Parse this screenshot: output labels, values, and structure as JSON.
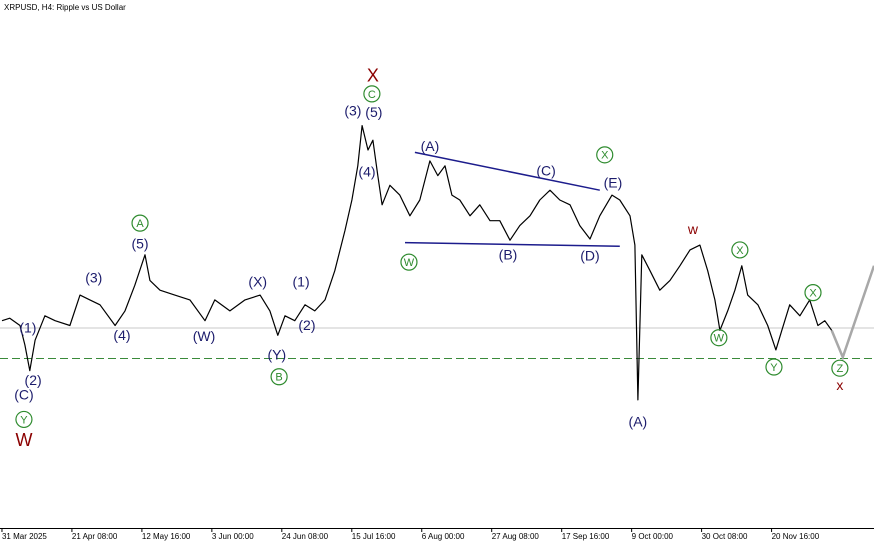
{
  "chart_data": {
    "type": "line",
    "title": "XRPUSD, H4:  Ripple vs US Dollar",
    "xlim": [
      -0.6,
      265.9
    ],
    "ylim": [
      0.26,
      4.73
    ],
    "xticks": [
      {
        "value": 0,
        "label": "31 Mar 2025"
      },
      {
        "value": 21.33,
        "label": "21 Apr 08:00"
      },
      {
        "value": 42.67,
        "label": "12 May 16:00"
      },
      {
        "value": 64,
        "label": "3 Jun 00:00"
      },
      {
        "value": 85.33,
        "label": "24 Jun 08:00"
      },
      {
        "value": 106.67,
        "label": "15 Jul 16:00"
      },
      {
        "value": 128,
        "label": "6 Aug 00:00"
      },
      {
        "value": 149.33,
        "label": "27 Aug 08:00"
      },
      {
        "value": 170.67,
        "label": "17 Sep 16:00"
      },
      {
        "value": 192,
        "label": "9 Oct 00:00"
      },
      {
        "value": 213.33,
        "label": "30 Oct 08:00"
      },
      {
        "value": 234.67,
        "label": "20 Nov 16:00"
      }
    ],
    "series": [
      {
        "color": "#000000",
        "x": [
          0.0,
          2.4,
          5.5,
          7.0,
          8.5,
          10.1,
          13.1,
          16.2,
          20.7,
          23.8,
          26.8,
          29.9,
          34.5,
          37.5,
          40.5,
          43.6,
          45.1,
          48.2,
          52.7,
          57.3,
          61.9,
          64.9,
          69.5,
          74.1,
          78.7,
          81.7,
          84.1,
          86.3,
          89.3,
          92.4,
          95.4,
          98.5,
          101.5,
          104.6,
          106.7,
          108.5,
          109.8,
          111.6,
          113.1,
          114.6,
          115.9,
          118.3,
          121.3,
          124.4,
          127.4,
          130.5,
          132.9,
          135.1,
          137.2,
          139.6,
          142.7,
          145.7,
          148.8,
          151.8,
          154.9,
          157.9,
          161.0,
          164.0,
          167.1,
          170.1,
          173.2,
          176.2,
          179.3,
          182.3,
          186.0,
          188.4,
          191.5,
          193.0,
          193.9,
          195.1,
          197.6,
          200.6,
          203.7,
          206.7,
          209.8,
          212.8,
          215.2,
          217.4,
          218.9,
          221.3,
          223.5,
          225.6,
          227.4,
          230.5,
          233.5,
          236.0,
          237.8,
          240.2,
          243.3,
          246.3,
          248.8,
          250.9,
          253.0
        ],
        "values": [
          2.1,
          2.12,
          2.06,
          1.9,
          1.69,
          1.94,
          2.14,
          2.1,
          2.06,
          2.31,
          2.27,
          2.23,
          2.06,
          2.18,
          2.39,
          2.64,
          2.43,
          2.35,
          2.31,
          2.27,
          2.1,
          2.27,
          2.18,
          2.27,
          2.31,
          2.18,
          1.98,
          2.14,
          2.1,
          2.23,
          2.18,
          2.27,
          2.51,
          2.84,
          3.09,
          3.37,
          3.7,
          3.5,
          3.58,
          3.29,
          3.05,
          3.21,
          3.13,
          2.96,
          3.09,
          3.41,
          3.29,
          3.37,
          3.13,
          3.09,
          2.96,
          3.05,
          2.92,
          2.92,
          2.76,
          2.88,
          2.96,
          3.09,
          3.17,
          3.09,
          3.05,
          2.88,
          2.77,
          2.96,
          3.13,
          3.09,
          2.96,
          2.72,
          1.45,
          2.64,
          2.51,
          2.35,
          2.43,
          2.55,
          2.68,
          2.72,
          2.51,
          2.27,
          2.02,
          2.18,
          2.35,
          2.55,
          2.31,
          2.23,
          2.06,
          1.86,
          2.02,
          2.23,
          2.14,
          2.27,
          2.06,
          2.1,
          2.02
        ]
      }
    ],
    "hlines": [
      {
        "value": 2.04,
        "color": "#c8c8c8",
        "dash": false
      },
      {
        "value": 1.79,
        "color": "#3a8a3a",
        "dash": true
      }
    ],
    "lines": [
      {
        "x": [
          125.9,
          182.3
        ],
        "y": [
          3.48,
          3.17
        ],
        "color": "#1c1c8c",
        "width": 1.5
      },
      {
        "x": [
          122.9,
          188.4
        ],
        "y": [
          2.74,
          2.71
        ],
        "color": "#1c1c8c",
        "width": 1.5
      },
      {
        "x": [
          253.0,
          256.4,
          265.9
        ],
        "y": [
          2.02,
          1.8,
          2.55
        ],
        "color": "#a8a8a8",
        "width": 2.5
      }
    ],
    "annotations": [
      {
        "text": "(1)",
        "x": 7.9,
        "y": 2.04,
        "color": "#1c1c6c",
        "circled": false
      },
      {
        "text": "(2)",
        "x": 9.5,
        "y": 1.61,
        "color": "#1c1c6c",
        "circled": false
      },
      {
        "text": "(C)",
        "x": 6.7,
        "y": 1.49,
        "color": "#1c1c6c",
        "circled": false
      },
      {
        "text": "Y",
        "x": 6.7,
        "y": 1.29,
        "color": "#2e8b2e",
        "circled": true
      },
      {
        "text": "W",
        "x": 6.7,
        "y": 1.12,
        "color": "#8b0000",
        "circled": false
      },
      {
        "text": "(3)",
        "x": 28.0,
        "y": 2.45,
        "color": "#1c1c6c",
        "circled": false
      },
      {
        "text": "(4)",
        "x": 36.6,
        "y": 1.98,
        "color": "#1c1c6c",
        "circled": false
      },
      {
        "text": "(5)",
        "x": 42.1,
        "y": 2.73,
        "color": "#1c1c6c",
        "circled": false
      },
      {
        "text": "A",
        "x": 42.1,
        "y": 2.9,
        "color": "#2e8b2e",
        "circled": true
      },
      {
        "text": "(W)",
        "x": 61.6,
        "y": 1.97,
        "color": "#1c1c6c",
        "circled": false
      },
      {
        "text": "(X)",
        "x": 78.0,
        "y": 2.42,
        "color": "#1c1c6c",
        "circled": false
      },
      {
        "text": "(Y)",
        "x": 83.8,
        "y": 1.82,
        "color": "#1c1c6c",
        "circled": false
      },
      {
        "text": "B",
        "x": 84.5,
        "y": 1.64,
        "color": "#2e8b2e",
        "circled": true
      },
      {
        "text": "(1)",
        "x": 91.2,
        "y": 2.42,
        "color": "#1c1c6c",
        "circled": false
      },
      {
        "text": "(2)",
        "x": 93.0,
        "y": 2.06,
        "color": "#1c1c6c",
        "circled": false
      },
      {
        "text": "(3)",
        "x": 107.0,
        "y": 3.82,
        "color": "#1c1c6c",
        "circled": false
      },
      {
        "text": "(4)",
        "x": 111.3,
        "y": 3.32,
        "color": "#1c1c6c",
        "circled": false
      },
      {
        "text": "(5)",
        "x": 113.4,
        "y": 3.81,
        "color": "#1c1c6c",
        "circled": false
      },
      {
        "text": "C",
        "x": 112.8,
        "y": 3.96,
        "color": "#2e8b2e",
        "circled": true
      },
      {
        "text": "X",
        "x": 113.1,
        "y": 4.11,
        "color": "#8b0000",
        "circled": false
      },
      {
        "text": "(A)",
        "x": 130.5,
        "y": 3.53,
        "color": "#1c1c6c",
        "circled": false
      },
      {
        "text": "W",
        "x": 124.1,
        "y": 2.58,
        "color": "#2e8b2e",
        "circled": true
      },
      {
        "text": "(B)",
        "x": 154.3,
        "y": 2.64,
        "color": "#1c1c6c",
        "circled": false
      },
      {
        "text": "(C)",
        "x": 165.9,
        "y": 3.33,
        "color": "#1c1c6c",
        "circled": false
      },
      {
        "text": "(D)",
        "x": 179.3,
        "y": 2.63,
        "color": "#1c1c6c",
        "circled": false
      },
      {
        "text": "(E)",
        "x": 186.3,
        "y": 3.23,
        "color": "#1c1c6c",
        "circled": false
      },
      {
        "text": "X",
        "x": 183.8,
        "y": 3.46,
        "color": "#2e8b2e",
        "circled": true
      },
      {
        "text": "(A)",
        "x": 193.9,
        "y": 1.27,
        "color": "#1c1c6c",
        "circled": false
      },
      {
        "text": "w",
        "x": 210.7,
        "y": 2.85,
        "color": "#8b0000",
        "circled": false
      },
      {
        "text": "W",
        "x": 218.6,
        "y": 1.96,
        "color": "#2e8b2e",
        "circled": true
      },
      {
        "text": "X",
        "x": 225.0,
        "y": 2.68,
        "color": "#2e8b2e",
        "circled": true
      },
      {
        "text": "Y",
        "x": 235.4,
        "y": 1.72,
        "color": "#2e8b2e",
        "circled": true
      },
      {
        "text": "X",
        "x": 247.3,
        "y": 2.33,
        "color": "#2e8b2e",
        "circled": true
      },
      {
        "text": "Z",
        "x": 255.5,
        "y": 1.71,
        "color": "#2e8b2e",
        "circled": true
      },
      {
        "text": "x",
        "x": 255.5,
        "y": 1.57,
        "color": "#8b0000",
        "circled": false
      }
    ]
  }
}
